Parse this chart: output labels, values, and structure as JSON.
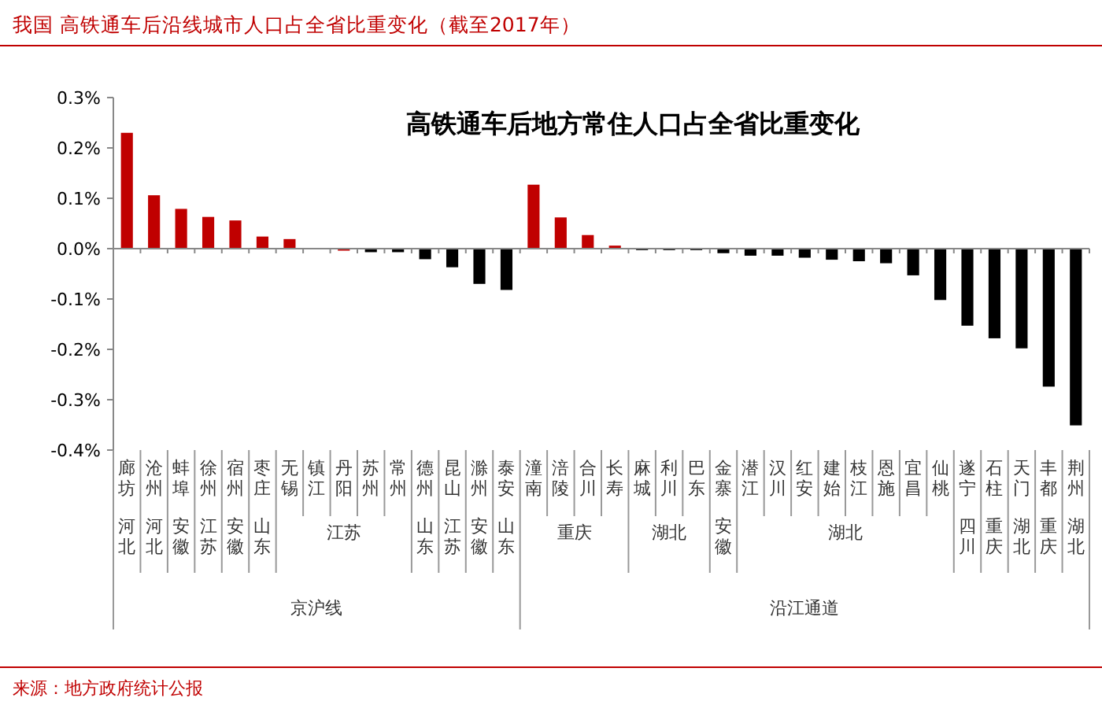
{
  "chart_data": {
    "type": "bar",
    "title": "我国 高铁通车后沿线城市人口占全省比重变化（截至2017年）",
    "subtitle": "高铁通车后地方常住人口占全省比重变化",
    "categories": [
      "廊坊",
      "沧州",
      "蚌埠",
      "徐州",
      "宿州",
      "枣庄",
      "无锡",
      "镇江",
      "丹阳",
      "苏州",
      "常州",
      "德州",
      "昆山",
      "滁州",
      "泰安",
      "潼南",
      "涪陵",
      "合川",
      "长寿",
      "麻城",
      "利川",
      "巴东",
      "金寨",
      "潜江",
      "汉川",
      "红安",
      "建始",
      "枝江",
      "恩施",
      "宜昌",
      "仙桃",
      "遂宁",
      "石柱",
      "天门",
      "丰都",
      "荆州"
    ],
    "values": [
      0.23,
      0.106,
      0.079,
      0.063,
      0.056,
      0.024,
      0.019,
      0,
      -0.004,
      -0.007,
      -0.007,
      -0.021,
      -0.037,
      -0.07,
      -0.082,
      0.127,
      0.062,
      0.027,
      0.006,
      -0.003,
      -0.003,
      -0.003,
      -0.009,
      -0.014,
      -0.014,
      -0.018,
      -0.022,
      -0.025,
      -0.029,
      -0.053,
      -0.102,
      -0.153,
      -0.178,
      -0.198,
      -0.274,
      -0.351
    ],
    "colors": [
      "#c00000",
      "#c00000",
      "#c00000",
      "#c00000",
      "#c00000",
      "#c00000",
      "#c00000",
      "#c00000",
      "#c00000",
      "#000000",
      "#000000",
      "#000000",
      "#000000",
      "#000000",
      "#000000",
      "#c00000",
      "#c00000",
      "#c00000",
      "#c00000",
      "#000000",
      "#000000",
      "#000000",
      "#000000",
      "#000000",
      "#000000",
      "#000000",
      "#000000",
      "#000000",
      "#000000",
      "#000000",
      "#000000",
      "#000000",
      "#000000",
      "#000000",
      "#000000",
      "#000000"
    ],
    "ylim": [
      -0.4,
      0.3
    ],
    "yticks": [
      {
        "value": 0.3,
        "label": "0.3%"
      },
      {
        "value": 0.2,
        "label": "0.2%"
      },
      {
        "value": 0.1,
        "label": "0.1%"
      },
      {
        "value": 0,
        "label": "0.0%"
      },
      {
        "value": -0.1,
        "label": "-0.1%"
      },
      {
        "value": -0.2,
        "label": "-0.2%"
      },
      {
        "value": -0.3,
        "label": "-0.3%"
      },
      {
        "value": -0.4,
        "label": "-0.4%"
      }
    ],
    "annotations": [
      "河北",
      "河北",
      "安徽",
      "江苏",
      "安徽",
      "山东",
      "江苏",
      "山东",
      "江苏",
      "安徽",
      "山东",
      "重庆",
      "湖北",
      "安徽",
      "湖北",
      "四川",
      "重庆",
      "湖北",
      "重庆",
      "湖北",
      "京沪线",
      "沿江通道",
      "来源：地方政府统计公报"
    ]
  }
}
